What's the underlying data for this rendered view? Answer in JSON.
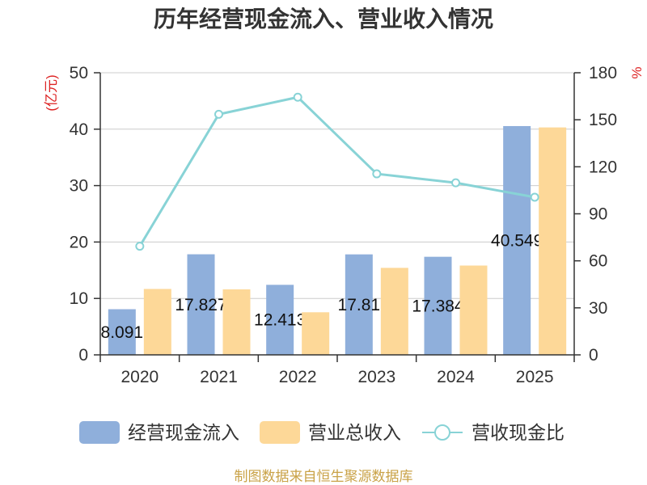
{
  "colors": {
    "cash_inflow": "#8fafdb",
    "revenue": "#fdd898",
    "ratio": "#88d3d6",
    "axis_unit": "#dd2222",
    "footer": "#c9a247"
  },
  "footer": "制图数据来自恒生聚源数据库",
  "chart_data": {
    "type": "bar",
    "title": "历年经营现金流入、营业收入情况",
    "categories": [
      "2020",
      "2021",
      "2022",
      "2023",
      "2024",
      "2025"
    ],
    "y_left": {
      "label": "(亿元)",
      "range": [
        0,
        50
      ],
      "ticks": [
        0,
        10,
        20,
        30,
        40,
        50
      ]
    },
    "y_right": {
      "label": "%",
      "range": [
        0,
        180
      ],
      "ticks": [
        0,
        30,
        60,
        90,
        120,
        150,
        180
      ]
    },
    "series": [
      {
        "name": "经营现金流入",
        "type": "bar",
        "axis": "left",
        "values": [
          8.091,
          17.827,
          12.413,
          17.81,
          17.384,
          40.549
        ]
      },
      {
        "name": "营业总收入",
        "type": "bar",
        "axis": "left",
        "values": [
          11.68,
          11.61,
          7.55,
          15.42,
          15.83,
          40.31
        ]
      },
      {
        "name": "营收现金比",
        "type": "line",
        "axis": "right",
        "values": [
          69.3,
          153.5,
          164.4,
          115.5,
          109.8,
          100.6
        ]
      }
    ],
    "grid": true,
    "legend_position": "bottom"
  }
}
